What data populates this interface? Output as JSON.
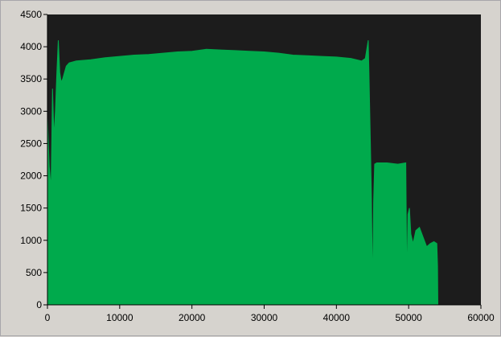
{
  "colors": {
    "panel_background": "#d6d3ce",
    "plot_background": "#1c1c1c",
    "signal": "#00aa4c",
    "axis": "#000000"
  },
  "chart_data": {
    "type": "area",
    "title": "",
    "xlabel": "",
    "ylabel": "",
    "xlim": [
      0,
      60000
    ],
    "ylim": [
      0,
      4500
    ],
    "grid": false,
    "x_ticks": [
      "0",
      "10000",
      "20000",
      "30000",
      "40000",
      "50000",
      "60000"
    ],
    "y_ticks": [
      "0",
      "500",
      "1000",
      "1500",
      "2000",
      "2500",
      "3000",
      "3500",
      "4000",
      "4500"
    ],
    "series": [
      {
        "fill": "#00aa4c",
        "x": [
          0,
          250,
          500,
          700,
          900,
          1100,
          1300,
          1500,
          1700,
          1900,
          2100,
          2300,
          2600,
          3000,
          4000,
          6000,
          8000,
          10000,
          12000,
          14000,
          16000,
          18000,
          20000,
          22000,
          24000,
          26000,
          28000,
          30000,
          32000,
          34000,
          36000,
          38000,
          40000,
          42000,
          43500,
          44000,
          44400,
          44500,
          44700,
          44850,
          45000,
          45150,
          45300,
          45600,
          47000,
          48500,
          49600,
          49750,
          49900,
          50100,
          50300,
          50600,
          51000,
          51500,
          52000,
          52500,
          53000,
          53500,
          53900,
          54000,
          54050
        ],
        "y": [
          2900,
          2150,
          1800,
          3350,
          2600,
          3000,
          3600,
          4100,
          3600,
          3450,
          3500,
          3580,
          3700,
          3750,
          3780,
          3800,
          3830,
          3850,
          3870,
          3880,
          3900,
          3920,
          3930,
          3960,
          3950,
          3940,
          3930,
          3920,
          3900,
          3870,
          3860,
          3850,
          3840,
          3820,
          3780,
          3820,
          4100,
          3600,
          2500,
          1650,
          200,
          1600,
          2180,
          2200,
          2200,
          2180,
          2200,
          300,
          1400,
          1500,
          1100,
          950,
          1150,
          1200,
          1050,
          900,
          950,
          980,
          950,
          600,
          0
        ]
      }
    ]
  }
}
